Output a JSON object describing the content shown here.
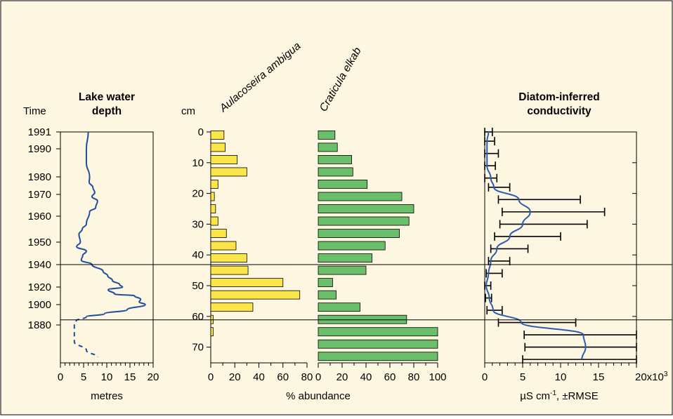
{
  "colors": {
    "background": "#fdf6e0",
    "depth_line": "#1f4e9e",
    "aulacoseira_fill": "#fbe64a",
    "craticula_fill": "#6bbf6b",
    "conductivity_line": "#2a5db0"
  },
  "chart_data": [
    {
      "type": "line",
      "panel": "lake-water-depth",
      "title": "Lake water depth",
      "time_label": "Time",
      "xlabel": "metres",
      "xlim": [
        0,
        20
      ],
      "x_ticks": [
        "0",
        "5",
        "10",
        "15",
        "20"
      ],
      "time_ticks": [
        "1991",
        "1990",
        "1980",
        "1970",
        "1960",
        "1950",
        "1940",
        "1920",
        "1900",
        "1880"
      ],
      "series": [
        {
          "style": "solid",
          "points": [
            {
              "time": 1991,
              "depth": 6
            },
            {
              "time": 1990,
              "depth": 5.6
            },
            {
              "time": 1985,
              "depth": 5.6
            },
            {
              "time": 1980,
              "depth": 6.3
            },
            {
              "time": 1977,
              "depth": 6.2
            },
            {
              "time": 1974,
              "depth": 7.0
            },
            {
              "time": 1971,
              "depth": 7.4
            },
            {
              "time": 1969,
              "depth": 6.8
            },
            {
              "time": 1967,
              "depth": 8.0
            },
            {
              "time": 1964,
              "depth": 7.6
            },
            {
              "time": 1962,
              "depth": 6.3
            },
            {
              "time": 1957,
              "depth": 5.6
            },
            {
              "time": 1955,
              "depth": 4.7
            },
            {
              "time": 1953,
              "depth": 4.0
            },
            {
              "time": 1950,
              "depth": 4.3
            },
            {
              "time": 1948,
              "depth": 3.5
            },
            {
              "time": 1946,
              "depth": 5.6
            },
            {
              "time": 1944,
              "depth": 4.8
            },
            {
              "time": 1942,
              "depth": 4.5
            },
            {
              "time": 1940,
              "depth": 6.8
            },
            {
              "time": 1934,
              "depth": 9.2
            },
            {
              "time": 1930,
              "depth": 10.2
            },
            {
              "time": 1926,
              "depth": 11.2
            },
            {
              "time": 1922,
              "depth": 12.8
            },
            {
              "time": 1920,
              "depth": 13.4
            },
            {
              "time": 1917,
              "depth": 10.3
            },
            {
              "time": 1912,
              "depth": 11.7
            },
            {
              "time": 1910,
              "depth": 16.0
            },
            {
              "time": 1906,
              "depth": 17.3
            },
            {
              "time": 1903,
              "depth": 17.0
            },
            {
              "time": 1900,
              "depth": 18.3
            },
            {
              "time": 1895,
              "depth": 14.4
            },
            {
              "time": 1891,
              "depth": 9.5
            },
            {
              "time": 1888,
              "depth": 5.6
            }
          ]
        },
        {
          "style": "dashed",
          "points": [
            {
              "time": 1888,
              "depth": 5.6
            },
            {
              "time": 1884,
              "depth": 3.4
            },
            {
              "time": 1880,
              "depth": 3.0
            },
            {
              "time": 1874,
              "depth": 3.0
            },
            {
              "time": 1868,
              "depth": 3.0
            },
            {
              "time": 1862,
              "depth": 5.6
            },
            {
              "time": 1857,
              "depth": 8.0
            }
          ]
        }
      ]
    },
    {
      "type": "bar",
      "panel": "diatom-abundance",
      "depth_label": "cm",
      "depth_ticks": [
        "0",
        "10",
        "20",
        "30",
        "40",
        "50",
        "60",
        "70"
      ],
      "xlabel": "% abundance",
      "series": [
        {
          "name": "Aulacoseira ambigua",
          "xlim": [
            0,
            80
          ],
          "x_ticks": [
            "0",
            "20",
            "40",
            "60",
            "80"
          ],
          "data": [
            {
              "depth": 1,
              "value": 11
            },
            {
              "depth": 5,
              "value": 12
            },
            {
              "depth": 9,
              "value": 22
            },
            {
              "depth": 13,
              "value": 30
            },
            {
              "depth": 17,
              "value": 6
            },
            {
              "depth": 21,
              "value": 3
            },
            {
              "depth": 25,
              "value": 4
            },
            {
              "depth": 29,
              "value": 6
            },
            {
              "depth": 33,
              "value": 13
            },
            {
              "depth": 37,
              "value": 21
            },
            {
              "depth": 41,
              "value": 30
            },
            {
              "depth": 45,
              "value": 31
            },
            {
              "depth": 49,
              "value": 60
            },
            {
              "depth": 53,
              "value": 74
            },
            {
              "depth": 57,
              "value": 35
            },
            {
              "depth": 61,
              "value": 2
            },
            {
              "depth": 65,
              "value": 2
            }
          ]
        },
        {
          "name": "Craticula elkab",
          "xlim": [
            0,
            100
          ],
          "x_ticks": [
            "0",
            "20",
            "40",
            "60",
            "80",
            "100"
          ],
          "data": [
            {
              "depth": 1,
              "value": 14
            },
            {
              "depth": 5,
              "value": 16
            },
            {
              "depth": 9,
              "value": 28
            },
            {
              "depth": 13,
              "value": 29
            },
            {
              "depth": 17,
              "value": 41
            },
            {
              "depth": 21,
              "value": 70
            },
            {
              "depth": 25,
              "value": 80
            },
            {
              "depth": 29,
              "value": 76
            },
            {
              "depth": 33,
              "value": 68
            },
            {
              "depth": 37,
              "value": 56
            },
            {
              "depth": 41,
              "value": 45
            },
            {
              "depth": 45,
              "value": 40
            },
            {
              "depth": 49,
              "value": 12
            },
            {
              "depth": 53,
              "value": 15
            },
            {
              "depth": 57,
              "value": 35
            },
            {
              "depth": 61,
              "value": 74
            },
            {
              "depth": 65,
              "value": 100
            },
            {
              "depth": 69,
              "value": 100
            },
            {
              "depth": 73,
              "value": 100
            }
          ]
        }
      ]
    },
    {
      "type": "line",
      "panel": "diatom-inferred-conductivity",
      "title": "Diatom-inferred conductivity",
      "xlabel_main": "µS cm",
      "xlabel_sup": "-1",
      "xlabel_tail": ", ±RMSE",
      "x_ticks": [
        "0",
        "5",
        "10",
        "15"
      ],
      "x_last_tick": "20x10",
      "x_last_tick_sup": "3",
      "xlim": [
        0,
        20
      ],
      "unit_multiplier": 1000,
      "points": [
        {
          "depth": 0,
          "value": 0.5,
          "low": 0.0,
          "high": 1.0
        },
        {
          "depth": 3,
          "value": 0.3,
          "low": 0.0,
          "high": 1.3
        },
        {
          "depth": 7,
          "value": 0.3,
          "low": 0.0,
          "high": 1.8
        },
        {
          "depth": 11,
          "value": 0.3,
          "low": 0.0,
          "high": 1.4
        },
        {
          "depth": 15,
          "value": 0.8,
          "low": 0.0,
          "high": 1.6
        },
        {
          "depth": 18,
          "value": 1.2,
          "low": 0.5,
          "high": 3.3
        },
        {
          "depth": 22,
          "value": 4.5,
          "low": 1.8,
          "high": 12.6
        },
        {
          "depth": 26,
          "value": 6.0,
          "low": 2.3,
          "high": 15.8
        },
        {
          "depth": 30,
          "value": 5.0,
          "low": 2.0,
          "high": 13.5
        },
        {
          "depth": 34,
          "value": 3.3,
          "low": 1.3,
          "high": 10.0
        },
        {
          "depth": 38,
          "value": 1.6,
          "low": 0.8,
          "high": 5.7
        },
        {
          "depth": 42,
          "value": 0.8,
          "low": 0.5,
          "high": 3.3
        },
        {
          "depth": 46,
          "value": 0.5,
          "low": 0.2,
          "high": 2.3
        },
        {
          "depth": 50,
          "value": 0.2,
          "low": 0.0,
          "high": 0.8
        },
        {
          "depth": 54,
          "value": 0.6,
          "low": 0.1,
          "high": 0.9
        },
        {
          "depth": 58,
          "value": 1.1,
          "low": 0.3,
          "high": 2.3
        },
        {
          "depth": 62,
          "value": 4.8,
          "low": 1.8,
          "high": 12.0
        },
        {
          "depth": 66,
          "value": 13.0,
          "low": 5.2,
          "high": 20.0
        },
        {
          "depth": 70,
          "value": 13.3,
          "low": 5.3,
          "high": 20.0
        },
        {
          "depth": 74,
          "value": 12.8,
          "low": 5.0,
          "high": 20.0
        }
      ]
    }
  ],
  "horizontal_lines_time": [
    1940,
    1885
  ]
}
